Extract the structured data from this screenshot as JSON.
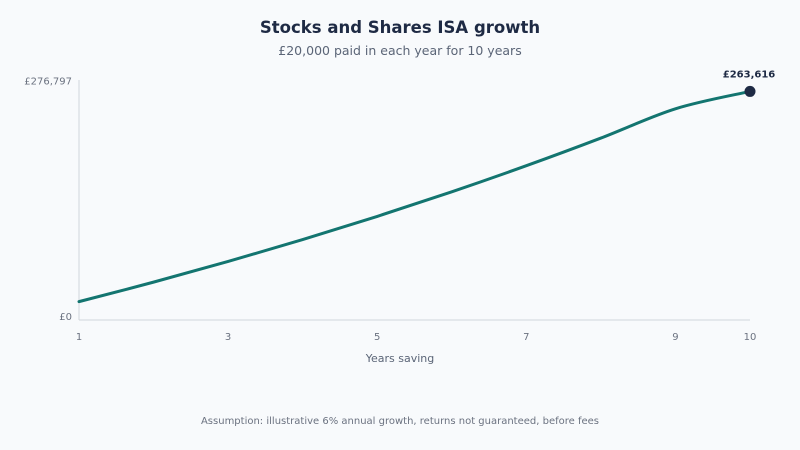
{
  "chart_data": {
    "type": "line",
    "title": "Stocks and Shares ISA growth",
    "subtitle": "£20,000 paid in each year for 10 years",
    "xlabel": "Years saving",
    "ylabel": "",
    "x": [
      1,
      2,
      3,
      4,
      5,
      6,
      7,
      8,
      9,
      10
    ],
    "series": [
      {
        "values": [
          21200,
          43672,
          67492,
          92741,
          119506,
          147877,
          177949,
          209826,
          243615,
          263616
        ],
        "color": "#137570"
      }
    ],
    "x_ticks": [
      "1",
      "3",
      "5",
      "7",
      "9",
      "10"
    ],
    "y_ticks": [
      "£0",
      "£276,797"
    ],
    "ylim": [
      0,
      276797
    ],
    "end_label": "£263,616",
    "marker_color": "#1e2a44",
    "grid": false,
    "legend": "none",
    "footnote": "Assumption: illustrative 6% annual growth, returns not guaranteed, before fees"
  }
}
